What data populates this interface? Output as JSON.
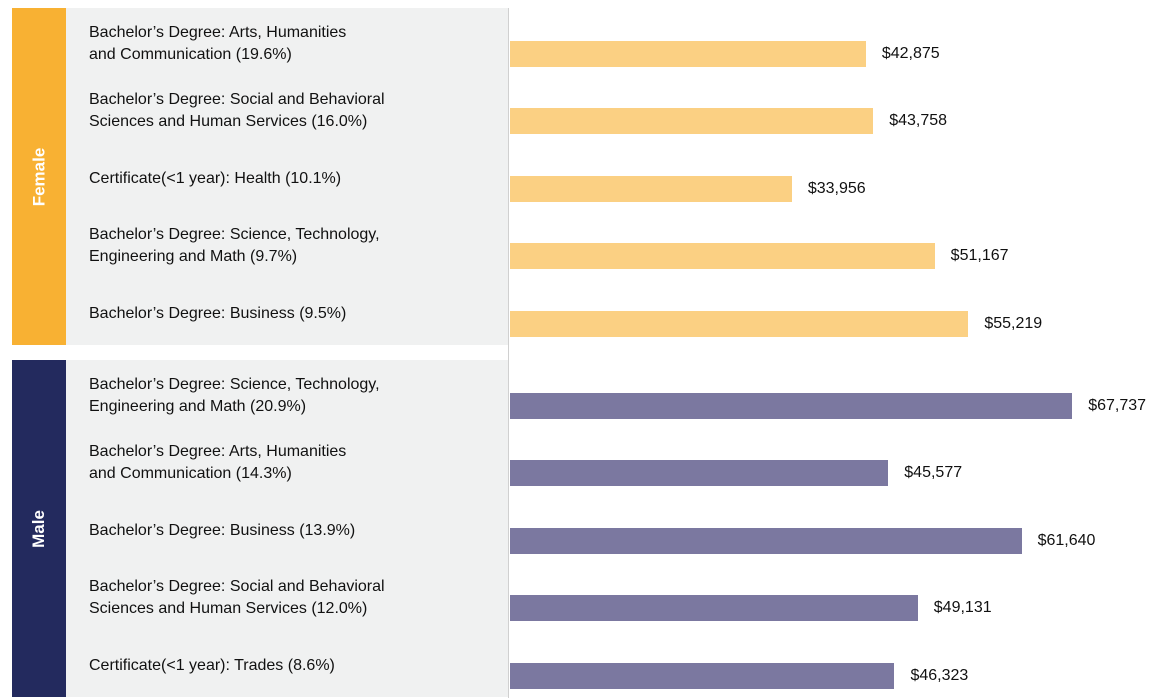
{
  "chart_data": {
    "type": "bar",
    "orientation": "horizontal",
    "groups": [
      {
        "name": "Female",
        "label_color": "#f8b133",
        "color": "#fbd083",
        "categories": [
          "Bachelor’s Degree: Arts, Humanities\nand Communication (19.6%)",
          "Bachelor’s Degree: Social and Behavioral\nSciences and Human Services (16.0%)",
          "Certificate(<1 year): Health  (10.1%)",
          "Bachelor’s Degree: Science, Technology,\nEngineering and Math (9.7%)",
          "Bachelor’s Degree: Business (9.5%)"
        ],
        "values": [
          42875,
          43758,
          33956,
          51167,
          55219
        ],
        "value_labels": [
          "$42,875",
          "$43,758",
          "$33,956",
          "$51,167",
          "$55,219"
        ]
      },
      {
        "name": "Male",
        "label_color": "#232a5e",
        "color": "#7b78a0",
        "categories": [
          "Bachelor’s Degree: Science, Technology,\nEngineering and Math (20.9%)",
          "Bachelor’s Degree: Arts, Humanities\nand Communication (14.3%)",
          "Bachelor’s Degree: Business (13.9%)",
          "Bachelor’s Degree: Social and Behavioral\nSciences and Human Services (12.0%)",
          "Certificate(<1 year): Trades (8.6%)"
        ],
        "values": [
          67737,
          45577,
          61640,
          49131,
          46323
        ],
        "value_labels": [
          "$67,737",
          "$45,577",
          "$61,640",
          "$49,131",
          "$46,323"
        ]
      }
    ]
  }
}
